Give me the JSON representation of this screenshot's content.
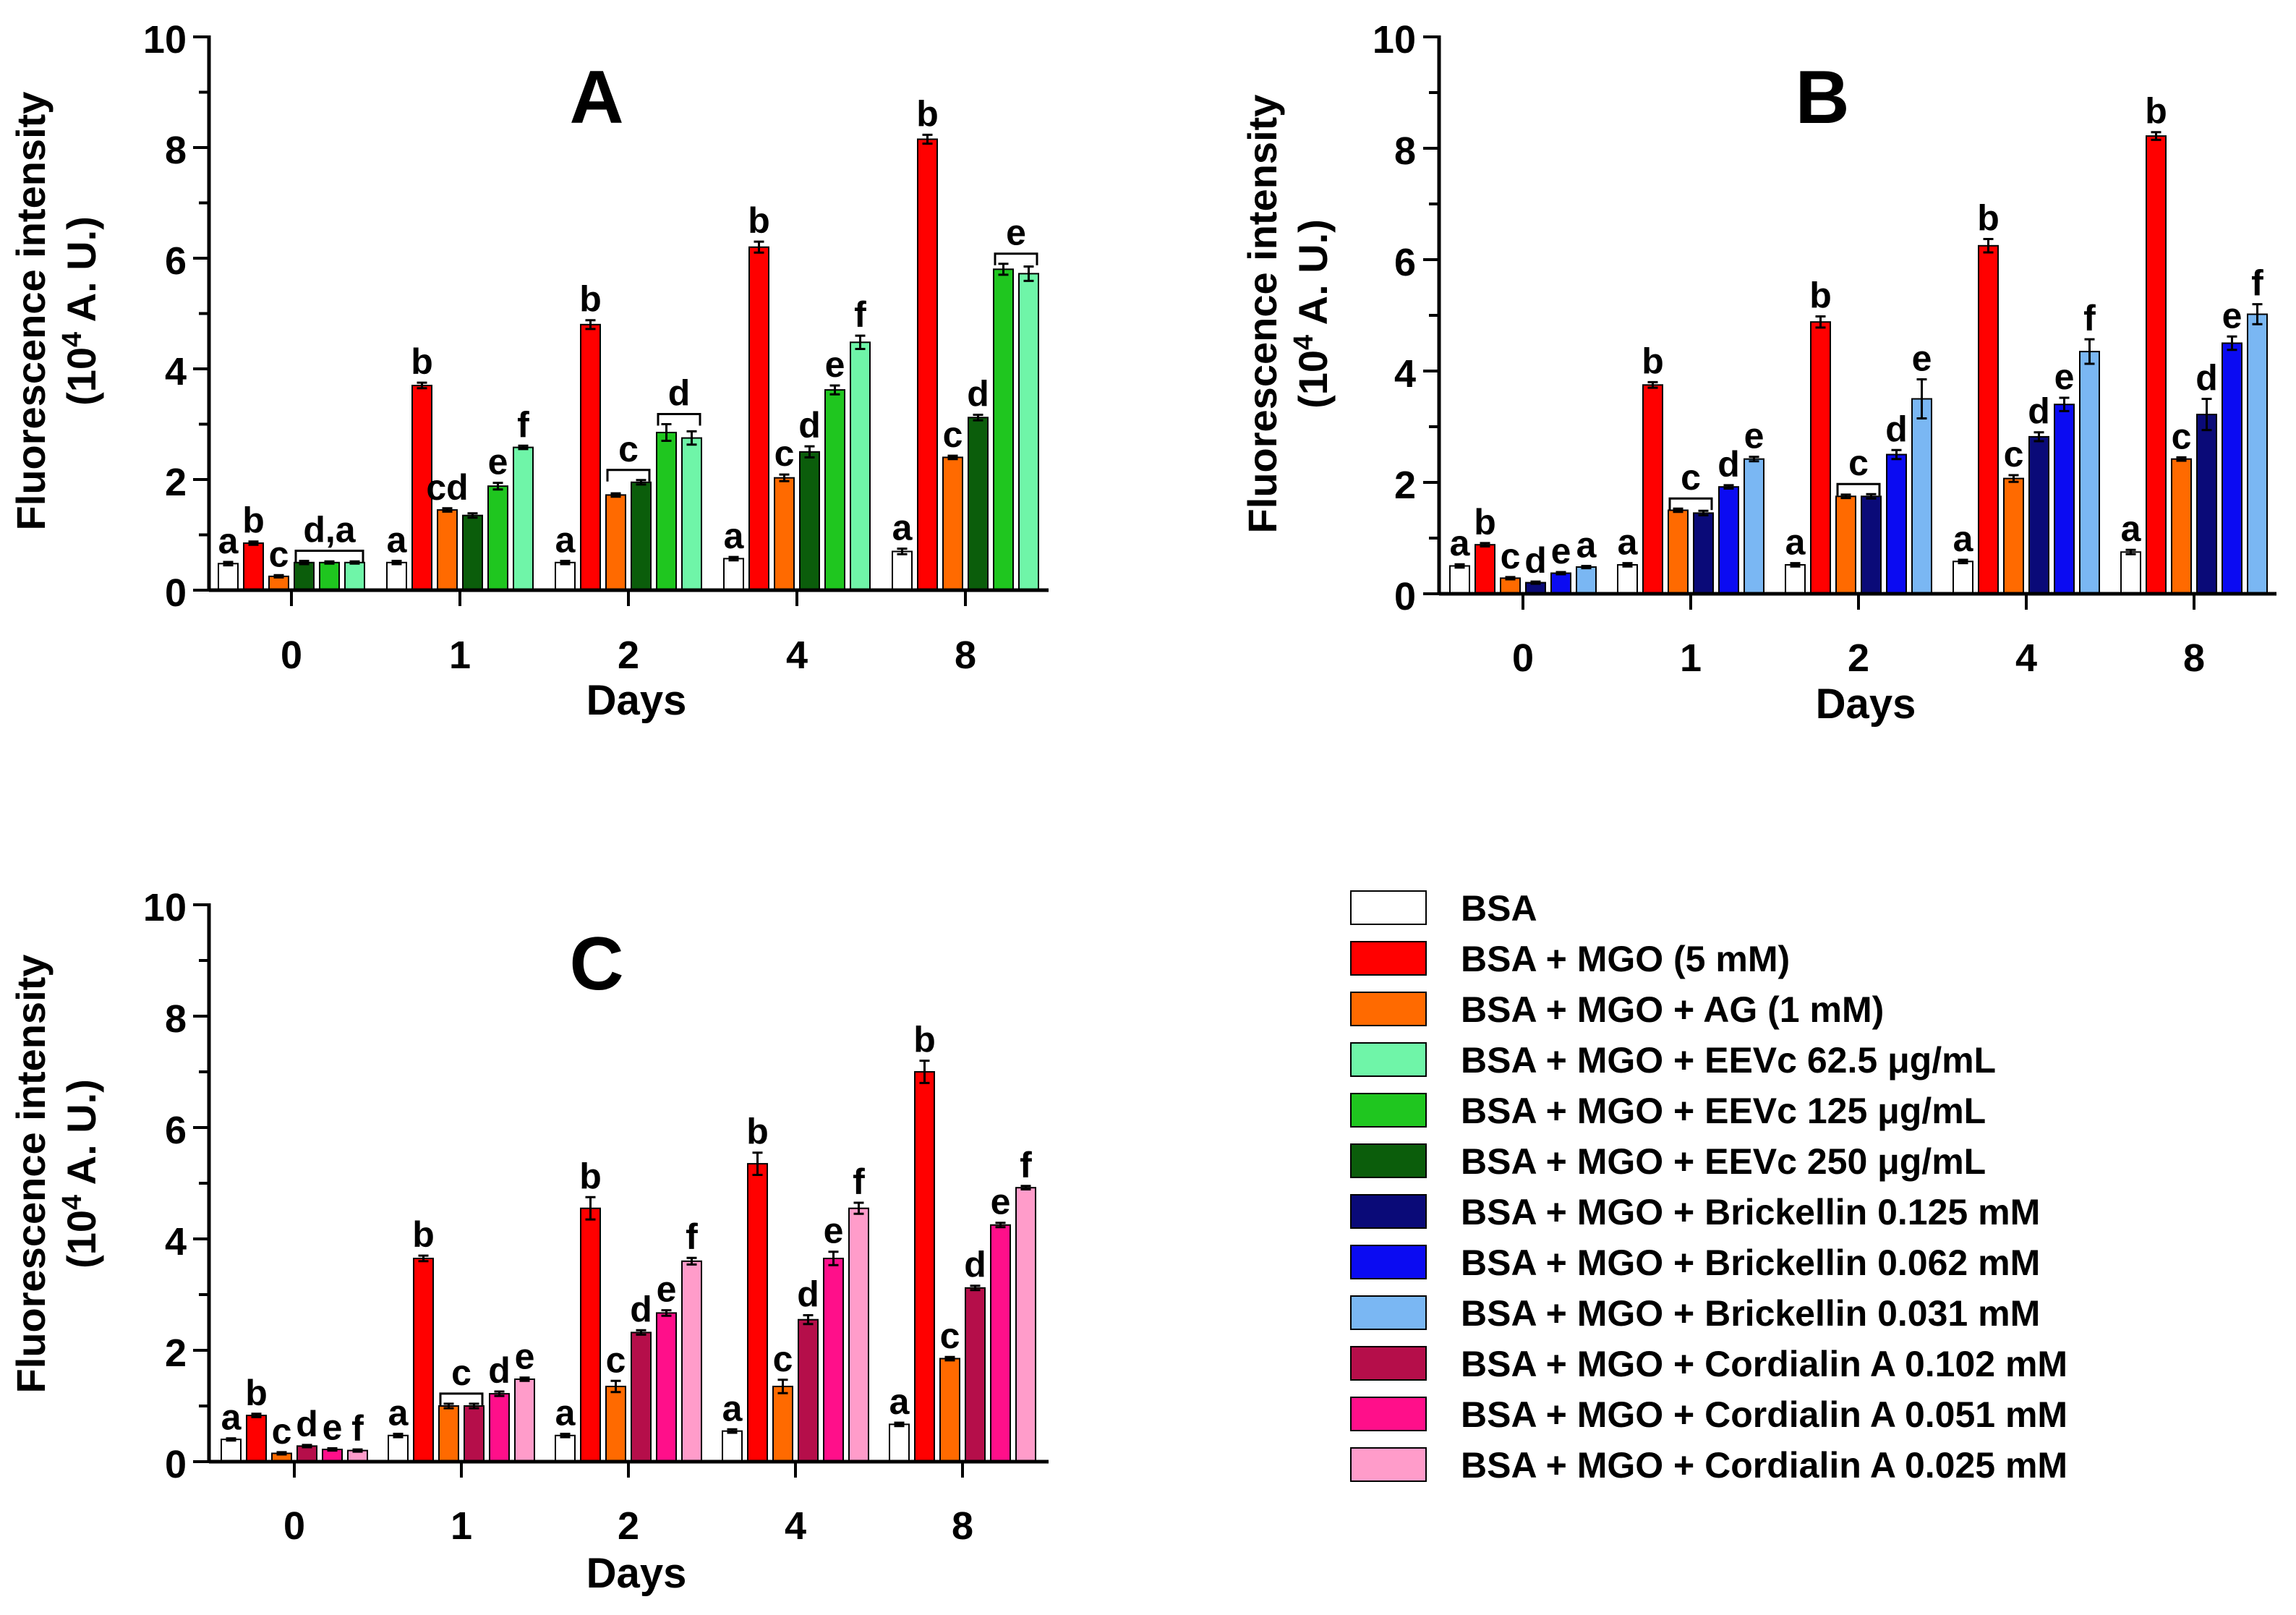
{
  "x_categories": [
    "0",
    "1",
    "2",
    "4",
    "8"
  ],
  "axis": {
    "ylabel_line1": "Fluorescence intensity",
    "ylabel_line2_pre": "(10",
    "ylabel_line2_sup": "4",
    "ylabel_line2_post": " A. U.)",
    "xlabel": "Days",
    "yticks": [
      "0",
      "2",
      "4",
      "6",
      "8",
      "10"
    ],
    "ylim": [
      0,
      10
    ]
  },
  "legend": [
    {
      "label": "BSA",
      "color": "#ffffff"
    },
    {
      "label": "BSA + MGO (5 mM)",
      "color": "#ff0000"
    },
    {
      "label": "BSA + MGO + AG (1 mM)",
      "color": "#ff6a00"
    },
    {
      "label": "BSA + MGO + EEVc 62.5 μg/mL",
      "color": "#6ff5a8"
    },
    {
      "label": "BSA + MGO + EEVc 125 μg/mL",
      "color": "#1fc61f"
    },
    {
      "label": "BSA + MGO + EEVc 250 μg/mL",
      "color": "#0b5d0b"
    },
    {
      "label": "BSA + MGO + Brickellin 0.125 mM",
      "color": "#0a0a78"
    },
    {
      "label": "BSA + MGO + Brickellin 0.062 mM",
      "color": "#0b0bf2"
    },
    {
      "label": "BSA + MGO + Brickellin 0.031 mM",
      "color": "#7ab7f3"
    },
    {
      "label": "BSA + MGO + Cordialin A 0.102 mM",
      "color": "#b50e4a"
    },
    {
      "label": "BSA + MGO + Cordialin A 0.051 mM",
      "color": "#ff0f8a"
    },
    {
      "label": "BSA + MGO + Cordialin A 0.025 mM",
      "color": "#ff9cca"
    }
  ],
  "chart_data": [
    {
      "type": "bar",
      "panel_label": "A",
      "categories": [
        "0",
        "1",
        "2",
        "4",
        "8"
      ],
      "series": [
        {
          "name": "BSA",
          "color": "#ffffff",
          "values": [
            0.48,
            0.5,
            0.5,
            0.57,
            0.7
          ],
          "errors": [
            0.03,
            0.03,
            0.03,
            0.03,
            0.05
          ],
          "letters": [
            "a",
            "a",
            "a",
            "a",
            "a"
          ]
        },
        {
          "name": "BSA + MGO (5 mM)",
          "color": "#ff0000",
          "values": [
            0.85,
            3.7,
            4.8,
            6.2,
            8.15
          ],
          "errors": [
            0.03,
            0.05,
            0.08,
            0.1,
            0.08
          ],
          "letters": [
            "b",
            "b",
            "b",
            "b",
            "b"
          ]
        },
        {
          "name": "BSA + MGO + AG (1 mM)",
          "color": "#ff6a00",
          "values": [
            0.25,
            1.45,
            1.72,
            2.03,
            2.4
          ],
          "errors": [
            0.02,
            0.03,
            0.03,
            0.06,
            0.03
          ],
          "letters": [
            "c",
            "cd",
            "",
            "c",
            "c"
          ]
        },
        {
          "name": "BSA + MGO + EEVc 250 μg/mL",
          "color": "#0b5d0b",
          "values": [
            0.5,
            1.35,
            1.95,
            2.5,
            3.12
          ],
          "errors": [
            0.03,
            0.04,
            0.04,
            0.1,
            0.05
          ],
          "letters": [
            "",
            "",
            "",
            "d",
            "d"
          ]
        },
        {
          "name": "BSA + MGO + EEVc 125 μg/mL",
          "color": "#1fc61f",
          "values": [
            0.5,
            1.88,
            2.85,
            3.62,
            5.8
          ],
          "errors": [
            0.02,
            0.06,
            0.15,
            0.08,
            0.1
          ],
          "letters": [
            "",
            "e",
            "",
            "e",
            ""
          ]
        },
        {
          "name": "BSA + MGO + EEVc 62.5 μg/mL",
          "color": "#6ff5a8",
          "values": [
            0.5,
            2.58,
            2.75,
            4.48,
            5.72
          ],
          "errors": [
            0.02,
            0.03,
            0.12,
            0.12,
            0.13
          ],
          "letters": [
            "",
            "f",
            "",
            "f",
            ""
          ]
        }
      ],
      "groups": [
        {
          "category": "0",
          "from": 3,
          "to": 5,
          "label": "d,a"
        },
        {
          "category": "2",
          "from": 2,
          "to": 3,
          "label": "c"
        },
        {
          "category": "2",
          "from": 4,
          "to": 5,
          "label": "d"
        },
        {
          "category": "8",
          "from": 4,
          "to": 5,
          "label": "e"
        }
      ],
      "xlabel": "Days",
      "ylabel": "Fluorescence intensity (10^4 A. U.)",
      "ylim": [
        0,
        10
      ]
    },
    {
      "type": "bar",
      "panel_label": "B",
      "categories": [
        "0",
        "1",
        "2",
        "4",
        "8"
      ],
      "series": [
        {
          "name": "BSA",
          "color": "#ffffff",
          "values": [
            0.5,
            0.52,
            0.52,
            0.58,
            0.75
          ],
          "errors": [
            0.03,
            0.03,
            0.03,
            0.03,
            0.04
          ],
          "letters": [
            "a",
            "a",
            "a",
            "a",
            "a"
          ]
        },
        {
          "name": "BSA + MGO (5 mM)",
          "color": "#ff0000",
          "values": [
            0.88,
            3.75,
            4.88,
            6.25,
            8.22
          ],
          "errors": [
            0.03,
            0.05,
            0.1,
            0.12,
            0.07
          ],
          "letters": [
            "b",
            "b",
            "b",
            "b",
            "b"
          ]
        },
        {
          "name": "BSA + MGO + AG (1 mM)",
          "color": "#ff6a00",
          "values": [
            0.28,
            1.5,
            1.75,
            2.07,
            2.42
          ],
          "errors": [
            0.02,
            0.03,
            0.03,
            0.06,
            0.03
          ],
          "letters": [
            "c",
            "",
            "",
            "c",
            "c"
          ]
        },
        {
          "name": "BSA + MGO + Brickellin 0.125 mM",
          "color": "#0a0a78",
          "values": [
            0.2,
            1.45,
            1.75,
            2.82,
            3.22
          ],
          "errors": [
            0.02,
            0.04,
            0.04,
            0.08,
            0.28
          ],
          "letters": [
            "d",
            "",
            "",
            "d",
            "d"
          ]
        },
        {
          "name": "BSA + MGO + Brickellin 0.062 mM",
          "color": "#0b0bf2",
          "values": [
            0.37,
            1.92,
            2.5,
            3.4,
            4.5
          ],
          "errors": [
            0.02,
            0.03,
            0.08,
            0.12,
            0.12
          ],
          "letters": [
            "e",
            "d",
            "d",
            "e",
            "e"
          ]
        },
        {
          "name": "BSA + MGO + Brickellin 0.031 mM",
          "color": "#7ab7f3",
          "values": [
            0.48,
            2.42,
            3.5,
            4.35,
            5.02
          ],
          "errors": [
            0.02,
            0.04,
            0.35,
            0.22,
            0.18
          ],
          "letters": [
            "a",
            "e",
            "e",
            "f",
            "f"
          ]
        }
      ],
      "groups": [
        {
          "category": "1",
          "from": 2,
          "to": 3,
          "label": "c"
        },
        {
          "category": "2",
          "from": 2,
          "to": 3,
          "label": "c"
        }
      ],
      "xlabel": "Days",
      "ylabel": "Fluorescence intensity (10^4 A. U.)",
      "ylim": [
        0,
        10
      ]
    },
    {
      "type": "bar",
      "panel_label": "C",
      "categories": [
        "0",
        "1",
        "2",
        "4",
        "8"
      ],
      "series": [
        {
          "name": "BSA",
          "color": "#ffffff",
          "values": [
            0.4,
            0.47,
            0.47,
            0.55,
            0.67
          ],
          "errors": [
            0.02,
            0.03,
            0.03,
            0.03,
            0.03
          ],
          "letters": [
            "a",
            "a",
            "a",
            "a",
            "a"
          ]
        },
        {
          "name": "BSA + MGO (5 mM)",
          "color": "#ff0000",
          "values": [
            0.83,
            3.65,
            4.55,
            5.35,
            7.0
          ],
          "errors": [
            0.03,
            0.05,
            0.2,
            0.2,
            0.2
          ],
          "letters": [
            "b",
            "b",
            "b",
            "b",
            "b"
          ]
        },
        {
          "name": "BSA + MGO + AG (1 mM)",
          "color": "#ff6a00",
          "values": [
            0.15,
            1.0,
            1.35,
            1.35,
            1.85
          ],
          "errors": [
            0.02,
            0.04,
            0.1,
            0.12,
            0.03
          ],
          "letters": [
            "c",
            "",
            "c",
            "c",
            "c"
          ]
        },
        {
          "name": "BSA + MGO + Cordialin A 0.102 mM",
          "color": "#b50e4a",
          "values": [
            0.28,
            1.0,
            2.32,
            2.55,
            3.12
          ],
          "errors": [
            0.02,
            0.04,
            0.04,
            0.08,
            0.04
          ],
          "letters": [
            "d",
            "",
            "d",
            "d",
            "d"
          ]
        },
        {
          "name": "BSA + MGO + Cordialin A 0.051 mM",
          "color": "#ff0f8a",
          "values": [
            0.22,
            1.22,
            2.67,
            3.65,
            4.25
          ],
          "errors": [
            0.02,
            0.04,
            0.05,
            0.12,
            0.04
          ],
          "letters": [
            "e",
            "d",
            "e",
            "e",
            "e"
          ]
        },
        {
          "name": "BSA + MGO + Cordialin A 0.025 mM",
          "color": "#ff9cca",
          "values": [
            0.2,
            1.48,
            3.6,
            4.55,
            4.92
          ],
          "errors": [
            0.02,
            0.03,
            0.06,
            0.1,
            0.03
          ],
          "letters": [
            "f",
            "e",
            "f",
            "f",
            "f"
          ]
        }
      ],
      "groups": [
        {
          "category": "1",
          "from": 2,
          "to": 3,
          "label": "c"
        }
      ],
      "xlabel": "Days",
      "ylabel": "Fluorescence intensity (10^4 A. U.)",
      "ylim": [
        0,
        10
      ]
    }
  ]
}
